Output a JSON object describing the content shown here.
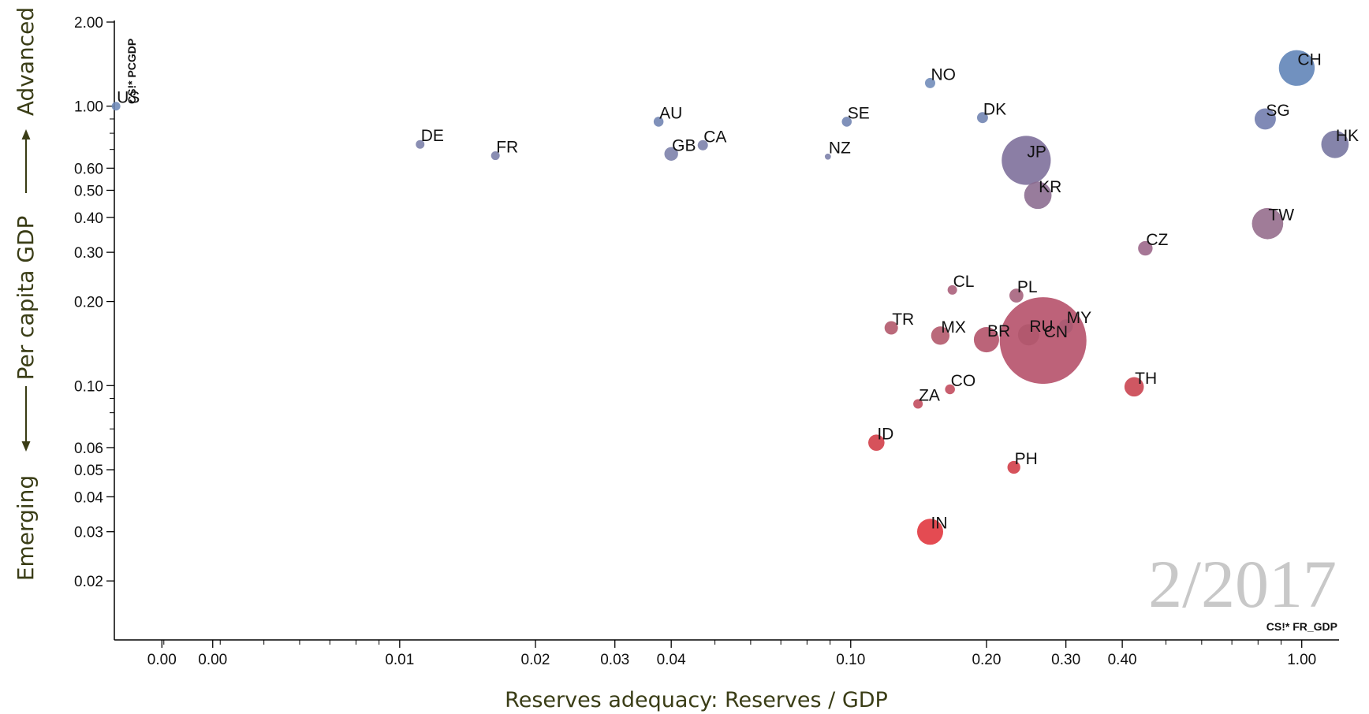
{
  "chart_data": {
    "type": "scatter",
    "xlabel": "Reserves adequacy: Reserves / GDP",
    "ylabel": "Per capita GDP",
    "y_top_label": "Advanced",
    "y_bottom_label": "Emerging",
    "x_code": "CS!* FR_GDP",
    "y_code": "CS!* PCGDP",
    "period": "2/2017",
    "x_scale": "log",
    "y_scale": "log",
    "xlim": [
      0.00233,
      1.2
    ],
    "ylim": [
      0.0123,
      2.0
    ],
    "x_tick_labels": [
      {
        "value": 0.00297,
        "label": "0.00"
      },
      {
        "value": 0.00385,
        "label": "0.00"
      },
      {
        "value": 0.01,
        "label": "0.01"
      },
      {
        "value": 0.02,
        "label": "0.02"
      },
      {
        "value": 0.03,
        "label": "0.03"
      },
      {
        "value": 0.04,
        "label": "0.04"
      },
      {
        "value": 0.1,
        "label": "0.10"
      },
      {
        "value": 0.2,
        "label": "0.20"
      },
      {
        "value": 0.3,
        "label": "0.30"
      },
      {
        "value": 0.4,
        "label": "0.40"
      },
      {
        "value": 1.0,
        "label": "1.00"
      }
    ],
    "x_minor_ticks": [
      0.003,
      0.004,
      0.005,
      0.006,
      0.007,
      0.008,
      0.009,
      0.05,
      0.06,
      0.07,
      0.08,
      0.09,
      0.5,
      0.6,
      0.7,
      0.8,
      0.9
    ],
    "y_tick_labels": [
      {
        "value": 0.02,
        "label": "0.02"
      },
      {
        "value": 0.03,
        "label": "0.03"
      },
      {
        "value": 0.04,
        "label": "0.04"
      },
      {
        "value": 0.05,
        "label": "0.05"
      },
      {
        "value": 0.06,
        "label": "0.06"
      },
      {
        "value": 0.1,
        "label": "0.10"
      },
      {
        "value": 0.2,
        "label": "0.20"
      },
      {
        "value": 0.3,
        "label": "0.30"
      },
      {
        "value": 0.4,
        "label": "0.40"
      },
      {
        "value": 0.5,
        "label": "0.50"
      },
      {
        "value": 0.6,
        "label": "0.60"
      },
      {
        "value": 1.0,
        "label": "1.00"
      },
      {
        "value": 2.0,
        "label": "2.00"
      }
    ],
    "y_minor_ticks": [
      0.07,
      0.08,
      0.09,
      0.7,
      0.8,
      0.9
    ],
    "points": [
      {
        "label": "US",
        "x": 0.00235,
        "y": 1.0,
        "size": 1,
        "color": "#6e8ab8"
      },
      {
        "label": "DE",
        "x": 0.0111,
        "y": 0.73,
        "size": 1,
        "color": "#7a7ea8"
      },
      {
        "label": "FR",
        "x": 0.0163,
        "y": 0.665,
        "size": 1,
        "color": "#7a7ea8"
      },
      {
        "label": "AU",
        "x": 0.0375,
        "y": 0.88,
        "size": 1.3,
        "color": "#6e82b0"
      },
      {
        "label": "GB",
        "x": 0.04,
        "y": 0.675,
        "size": 2.5,
        "color": "#7a7ea8"
      },
      {
        "label": "CA",
        "x": 0.047,
        "y": 0.725,
        "size": 1.4,
        "color": "#7a7ea8"
      },
      {
        "label": "SE",
        "x": 0.098,
        "y": 0.88,
        "size": 1.3,
        "color": "#6e82b0"
      },
      {
        "label": "NZ",
        "x": 0.089,
        "y": 0.66,
        "size": 0.5,
        "color": "#7a7ea8"
      },
      {
        "label": "NO",
        "x": 0.15,
        "y": 1.21,
        "size": 1.4,
        "color": "#6e8ab8"
      },
      {
        "label": "DK",
        "x": 0.196,
        "y": 0.91,
        "size": 1.6,
        "color": "#6e82b0"
      },
      {
        "label": "CH",
        "x": 0.975,
        "y": 1.37,
        "size": 17,
        "color": "#5d82b6"
      },
      {
        "label": "SG",
        "x": 0.83,
        "y": 0.9,
        "size": 6,
        "color": "#6e7aac"
      },
      {
        "label": "HK",
        "x": 1.185,
        "y": 0.73,
        "size": 10,
        "color": "#74739e"
      },
      {
        "label": "JP",
        "x": 0.245,
        "y": 0.64,
        "size": 32,
        "color": "#7b6c98"
      },
      {
        "label": "KR",
        "x": 0.26,
        "y": 0.48,
        "size": 10,
        "color": "#8a6a8e"
      },
      {
        "label": "TW",
        "x": 0.84,
        "y": 0.38,
        "size": 13,
        "color": "#936a8a"
      },
      {
        "label": "CZ",
        "x": 0.45,
        "y": 0.31,
        "size": 2.8,
        "color": "#9a6488"
      },
      {
        "label": "CL",
        "x": 0.168,
        "y": 0.22,
        "size": 1.2,
        "color": "#a85c78"
      },
      {
        "label": "PL",
        "x": 0.233,
        "y": 0.21,
        "size": 2.6,
        "color": "#a45e7a"
      },
      {
        "label": "MY",
        "x": 0.3,
        "y": 0.163,
        "size": 2.6,
        "color": "#aa5a72"
      },
      {
        "label": "TR",
        "x": 0.123,
        "y": 0.161,
        "size": 2.4,
        "color": "#b05468"
      },
      {
        "label": "MX",
        "x": 0.158,
        "y": 0.151,
        "size": 4.5,
        "color": "#b05468"
      },
      {
        "label": "BR",
        "x": 0.2,
        "y": 0.146,
        "size": 8.5,
        "color": "#b24e66"
      },
      {
        "label": "RU",
        "x": 0.248,
        "y": 0.152,
        "size": 6,
        "color": "#b0566c"
      },
      {
        "label": "CN",
        "x": 0.267,
        "y": 0.145,
        "size": 100,
        "color": "#b44c66"
      },
      {
        "label": "TH",
        "x": 0.425,
        "y": 0.099,
        "size": 5,
        "color": "#c8404c"
      },
      {
        "label": "CO",
        "x": 0.166,
        "y": 0.097,
        "size": 1.3,
        "color": "#c0485a"
      },
      {
        "label": "ZA",
        "x": 0.141,
        "y": 0.086,
        "size": 1.2,
        "color": "#c0485a"
      },
      {
        "label": "ID",
        "x": 0.114,
        "y": 0.0625,
        "size": 3.5,
        "color": "#d03a44"
      },
      {
        "label": "PH",
        "x": 0.23,
        "y": 0.051,
        "size": 2.2,
        "color": "#d03a44"
      },
      {
        "label": "IN",
        "x": 0.15,
        "y": 0.03,
        "size": 9,
        "color": "#e0323a"
      }
    ]
  }
}
